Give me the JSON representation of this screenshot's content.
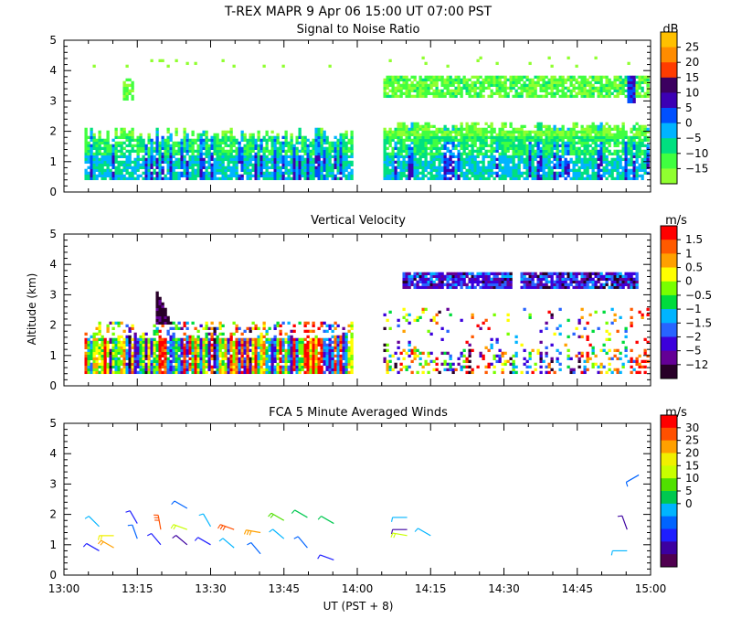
{
  "title": "T-REX  MAPR  9 Apr 06  15:00 UT  07:00  PST",
  "xlabel": "UT  (PST + 8)",
  "ylabel": "Altitude (km)",
  "x_ticks": [
    "13:00",
    "13:15",
    "13:30",
    "13:45",
    "14:00",
    "14:15",
    "14:30",
    "14:45",
    "15:00"
  ],
  "chart_data": [
    {
      "type": "heatmap",
      "title": "Signal to Noise Ratio",
      "xrange_utc_hours": [
        13.0,
        15.0
      ],
      "ylim_km": [
        0,
        5
      ],
      "y_ticks": [
        0,
        1,
        2,
        3,
        4,
        5
      ],
      "data_gap_utc_hours": [
        13.98,
        14.08
      ],
      "colorbar": {
        "unit": "dB",
        "labels": [
          "25",
          "20",
          "15",
          "10",
          "5",
          "0",
          "−5",
          "−10",
          "−15"
        ],
        "colors": [
          "#ffc000",
          "#ff8c00",
          "#ff3c00",
          "#3c0060",
          "#3c00b4",
          "#0050ff",
          "#00b4ff",
          "#00e080",
          "#40ff40",
          "#90ff30"
        ]
      },
      "features": [
        {
          "name": "dense echo layer 13:05-13:59",
          "x_range": [
            13.07,
            13.98
          ],
          "alt_range_km": [
            0.4,
            2.1
          ],
          "dominant_db": [
            -15,
            0
          ]
        },
        {
          "name": "dense echo layer 14:05-14:59",
          "x_range": [
            14.08,
            14.99
          ],
          "alt_range_km": [
            0.4,
            2.3
          ],
          "dominant_db": [
            -15,
            -5
          ]
        },
        {
          "name": "upper layer",
          "x_range": [
            14.08,
            14.99
          ],
          "alt_range_km": [
            3.1,
            3.8
          ],
          "dominant_db": [
            -15,
            -5
          ]
        },
        {
          "name": "strong plume",
          "x_range": [
            14.92,
            14.94
          ],
          "alt_range_km": [
            2.9,
            3.8
          ],
          "dominant_db": [
            10,
            15
          ]
        }
      ]
    },
    {
      "type": "heatmap",
      "title": "Vertical Velocity",
      "xrange_utc_hours": [
        13.0,
        15.0
      ],
      "ylim_km": [
        0,
        5
      ],
      "y_ticks": [
        0,
        1,
        2,
        3,
        4,
        5
      ],
      "data_gap_utc_hours": [
        13.98,
        14.08
      ],
      "colorbar": {
        "unit": "m/s",
        "labels": [
          "1.5",
          "1",
          "0.5",
          "0",
          "−0.5",
          "−1",
          "−1.5",
          "−2",
          "−5",
          "−12"
        ],
        "colors": [
          "#ff0000",
          "#ff5a00",
          "#ffa000",
          "#ffff00",
          "#78ff00",
          "#00dc3c",
          "#00b4ff",
          "#2864ff",
          "#3c00dc",
          "#640096",
          "#280028"
        ]
      },
      "features": [
        {
          "name": "mixed updrafts/downdrafts",
          "x_range": [
            13.07,
            13.98
          ],
          "alt_range_km": [
            0.4,
            1.8
          ],
          "dominant_ms": [
            -5,
            1.5
          ]
        },
        {
          "name": "strong downdraft streak",
          "x_range": [
            13.3,
            13.4
          ],
          "alt_range_km": [
            2.0,
            3.1
          ],
          "dominant_ms": [
            -12,
            -5
          ]
        },
        {
          "name": "upper downdraft band",
          "x_range": [
            14.15,
            14.95
          ],
          "alt_range_km": [
            3.2,
            3.7
          ],
          "dominant_ms": [
            -5,
            -1.5
          ]
        },
        {
          "name": "sparse lower echoes",
          "x_range": [
            14.08,
            14.99
          ],
          "alt_range_km": [
            0.4,
            2.5
          ],
          "dominant_ms": [
            -2,
            1.5
          ]
        }
      ]
    },
    {
      "type": "scatter",
      "title": "FCA 5 Minute Averaged Winds",
      "xrange_utc_hours": [
        13.0,
        15.0
      ],
      "ylim_km": [
        0,
        5
      ],
      "y_ticks": [
        0,
        1,
        2,
        3,
        4,
        5
      ],
      "colorbar": {
        "unit": "m/s",
        "labels": [
          "30",
          "25",
          "20",
          "15",
          "10",
          "5",
          "0"
        ],
        "colors": [
          "#ff0000",
          "#ff5000",
          "#ffa000",
          "#f0f000",
          "#c8ff00",
          "#50e000",
          "#00c850",
          "#00b4ff",
          "#0064ff",
          "#1e1eff",
          "#3c00a0",
          "#500050"
        ]
      },
      "wind_barbs": [
        {
          "t": 13.12,
          "alt": 1.6,
          "speed": 12,
          "dir_deg": 315
        },
        {
          "t": 13.12,
          "alt": 0.8,
          "speed": 5,
          "dir_deg": 300
        },
        {
          "t": 13.17,
          "alt": 1.3,
          "speed": 22,
          "dir_deg": 270
        },
        {
          "t": 13.17,
          "alt": 0.9,
          "speed": 24,
          "dir_deg": 300
        },
        {
          "t": 13.25,
          "alt": 1.7,
          "speed": 6,
          "dir_deg": 330
        },
        {
          "t": 13.25,
          "alt": 1.2,
          "speed": 8,
          "dir_deg": 340
        },
        {
          "t": 13.33,
          "alt": 1.5,
          "speed": 28,
          "dir_deg": 350
        },
        {
          "t": 13.33,
          "alt": 1.0,
          "speed": 6,
          "dir_deg": 320
        },
        {
          "t": 13.42,
          "alt": 2.2,
          "speed": 8,
          "dir_deg": 300
        },
        {
          "t": 13.42,
          "alt": 1.5,
          "speed": 18,
          "dir_deg": 290
        },
        {
          "t": 13.42,
          "alt": 1.0,
          "speed": 4,
          "dir_deg": 310
        },
        {
          "t": 13.5,
          "alt": 1.6,
          "speed": 12,
          "dir_deg": 330
        },
        {
          "t": 13.5,
          "alt": 1.0,
          "speed": 5,
          "dir_deg": 300
        },
        {
          "t": 13.58,
          "alt": 1.5,
          "speed": 28,
          "dir_deg": 290
        },
        {
          "t": 13.58,
          "alt": 0.9,
          "speed": 10,
          "dir_deg": 310
        },
        {
          "t": 13.67,
          "alt": 1.4,
          "speed": 25,
          "dir_deg": 280
        },
        {
          "t": 13.67,
          "alt": 0.7,
          "speed": 7,
          "dir_deg": 320
        },
        {
          "t": 13.75,
          "alt": 1.8,
          "speed": 16,
          "dir_deg": 300
        },
        {
          "t": 13.75,
          "alt": 1.2,
          "speed": 12,
          "dir_deg": 310
        },
        {
          "t": 13.83,
          "alt": 1.9,
          "speed": 14,
          "dir_deg": 300
        },
        {
          "t": 13.83,
          "alt": 0.9,
          "speed": 8,
          "dir_deg": 320
        },
        {
          "t": 13.92,
          "alt": 1.7,
          "speed": 14,
          "dir_deg": 300
        },
        {
          "t": 13.92,
          "alt": 0.5,
          "speed": 5,
          "dir_deg": 290
        },
        {
          "t": 14.17,
          "alt": 1.9,
          "speed": 12,
          "dir_deg": 270
        },
        {
          "t": 14.17,
          "alt": 1.5,
          "speed": 4,
          "dir_deg": 270
        },
        {
          "t": 14.17,
          "alt": 1.3,
          "speed": 20,
          "dir_deg": 280
        },
        {
          "t": 14.25,
          "alt": 1.3,
          "speed": 11,
          "dir_deg": 300
        },
        {
          "t": 14.92,
          "alt": 1.5,
          "speed": 3,
          "dir_deg": 340
        },
        {
          "t": 14.92,
          "alt": 0.8,
          "speed": 10,
          "dir_deg": 270
        },
        {
          "t": 14.96,
          "alt": 3.3,
          "speed": 9,
          "dir_deg": 240
        }
      ]
    }
  ]
}
